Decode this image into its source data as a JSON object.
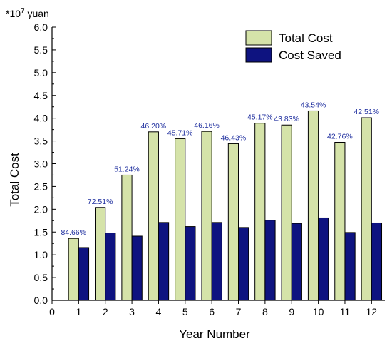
{
  "chart_data": {
    "type": "bar",
    "unit_label": "*10",
    "unit_exponent": "7",
    "unit_suffix": " yuan",
    "xlabel": "Year Number",
    "ylabel": "Total Cost",
    "xlim": [
      0,
      12.5
    ],
    "ylim": [
      0,
      6.0
    ],
    "y_ticks": [
      "0.0",
      "0.5",
      "1.0",
      "1.5",
      "2.0",
      "2.5",
      "3.0",
      "3.5",
      "4.0",
      "4.5",
      "5.0",
      "5.5",
      "6.0"
    ],
    "x_ticks": [
      "0",
      "1",
      "2",
      "3",
      "4",
      "5",
      "6",
      "7",
      "8",
      "9",
      "10",
      "11",
      "12"
    ],
    "categories": [
      1,
      2,
      3,
      4,
      5,
      6,
      7,
      8,
      9,
      10,
      11,
      12
    ],
    "series": [
      {
        "name": "Total Cost",
        "color": "#d5e3a9",
        "values": [
          1.36,
          2.04,
          2.75,
          3.7,
          3.55,
          3.71,
          3.44,
          3.89,
          3.85,
          4.16,
          3.47,
          4.01
        ]
      },
      {
        "name": "Cost Saved",
        "color": "#0e1380",
        "values": [
          1.16,
          1.48,
          1.41,
          1.71,
          1.62,
          1.71,
          1.6,
          1.76,
          1.69,
          1.81,
          1.49,
          1.7
        ]
      }
    ],
    "data_labels": [
      "84.66%",
      "72.51%",
      "51.24%",
      "46.20%",
      "45.71%",
      "46.16%",
      "46.43%",
      "45.17%",
      "43.83%",
      "43.54%",
      "42.76%",
      "42.51%"
    ],
    "legend_position": "top-right",
    "grid": false
  }
}
